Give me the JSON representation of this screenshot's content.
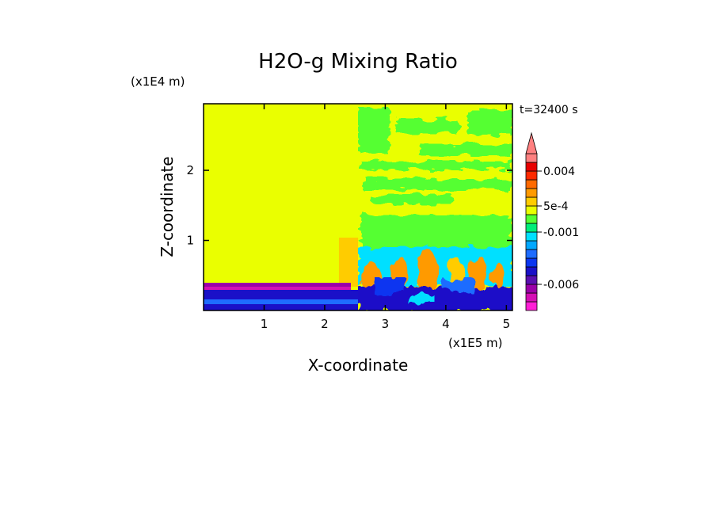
{
  "chart_data": {
    "type": "heatmap",
    "title": "H2O-g Mixing Ratio",
    "xlabel": "X-coordinate",
    "ylabel": "Z-coordinate",
    "x_scale_label": "(x1E5 m)",
    "y_scale_label": "(x1E4 m)",
    "time_label": "t=32400 s",
    "xlim": [
      0,
      5.1
    ],
    "ylim": [
      0,
      2.95
    ],
    "x_ticks": [
      1,
      2,
      3,
      4,
      5
    ],
    "y_ticks": [
      1,
      2
    ],
    "x_tick_labels": [
      "1",
      "2",
      "3",
      "4",
      "5"
    ],
    "y_tick_labels": [
      "1",
      "2"
    ],
    "colorbar": {
      "levels": [
        -0.008,
        -0.007,
        -0.006,
        -0.005,
        -0.004,
        -0.003,
        -0.002,
        -0.0015,
        -0.001,
        -0.0005,
        0,
        0.0005,
        0.001,
        0.002,
        0.003,
        0.004,
        0.005,
        0.006
      ],
      "colors": [
        "#ff1fd6",
        "#d40fb4",
        "#9b00a8",
        "#5a0fb0",
        "#1a10c8",
        "#0a36f0",
        "#1e6cff",
        "#00a8ff",
        "#00e0ff",
        "#00ee7a",
        "#55ff33",
        "#eaff00",
        "#ffcc00",
        "#ff9a00",
        "#ff6a00",
        "#ff2a00",
        "#e80000",
        "#ff8080"
      ],
      "tick_labels": [
        {
          "label": "0.004",
          "value": 0.004
        },
        {
          "label": "5e-4",
          "value": 0.0005
        },
        {
          "label": "-0.001",
          "value": -0.001
        },
        {
          "label": "-0.006",
          "value": -0.006
        }
      ],
      "extend": "max"
    },
    "regions": [
      {
        "name": "background",
        "value": 0.0007,
        "x": [
          0,
          5.1
        ],
        "z": [
          0,
          2.95
        ]
      },
      {
        "name": "upper-right-green-bands",
        "value": 0,
        "x": [
          2.55,
          5.1
        ],
        "z": [
          1.5,
          2.95
        ]
      },
      {
        "name": "mid-right-green",
        "value": 0,
        "x": [
          2.55,
          5.1
        ],
        "z": [
          0.85,
          1.45
        ]
      },
      {
        "name": "right-cyan-layer",
        "value": -0.0006,
        "x": [
          2.55,
          5.1
        ],
        "z": [
          0.3,
          0.85
        ]
      },
      {
        "name": "orange-plumes",
        "value": 0.0022,
        "x": [
          2.6,
          5.0
        ],
        "z": [
          0.25,
          0.8
        ]
      },
      {
        "name": "surface-blue-layer",
        "value": -0.003,
        "x": [
          0,
          5.1
        ],
        "z": [
          0,
          0.25
        ]
      },
      {
        "name": "left-purple-band",
        "value": -0.005,
        "x": [
          0,
          2.45
        ],
        "z": [
          0.33,
          0.4
        ]
      },
      {
        "name": "peach-block",
        "value": 0.0015,
        "x": [
          2.33,
          2.55
        ],
        "z": [
          0.38,
          1.05
        ]
      }
    ]
  }
}
